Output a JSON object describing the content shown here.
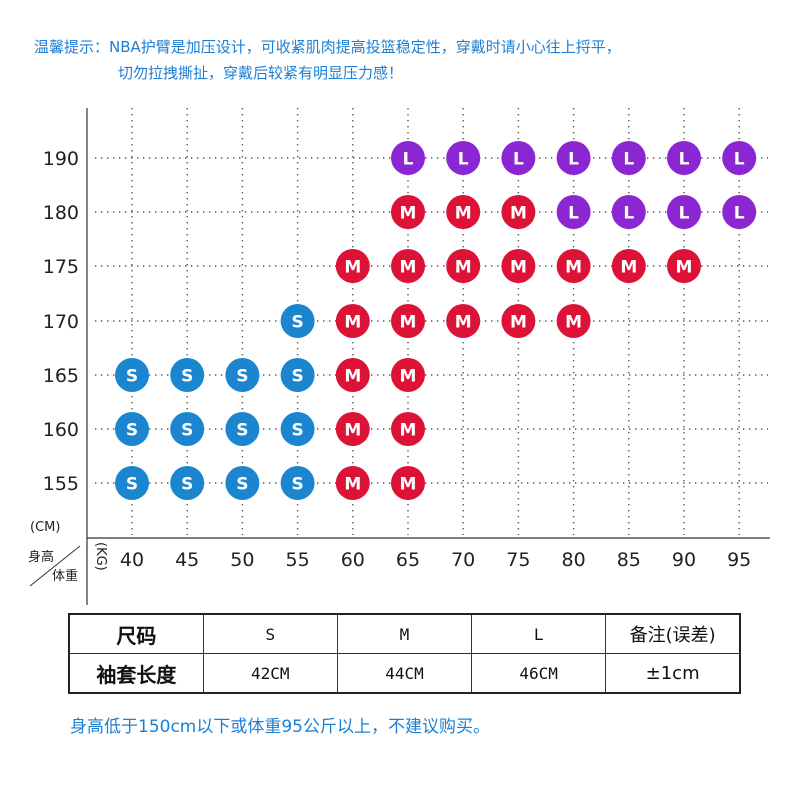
{
  "notice": {
    "line1": "温馨提示：NBA护臂是加压设计，可收紧肌肉提高投篮稳定性，穿戴时请小心往上捋平，",
    "line2": "切勿拉拽撕扯，穿戴后较紧有明显压力感！"
  },
  "chart_data": {
    "type": "scatter",
    "title": "",
    "xlabel": "(KG)",
    "ylabel": "(CM)",
    "corner_label_top": "身高",
    "corner_label_bottom": "体重",
    "x_ticks": [
      40,
      45,
      50,
      55,
      60,
      65,
      70,
      75,
      80,
      85,
      90,
      95
    ],
    "y_ticks": [
      155,
      160,
      165,
      170,
      175,
      180,
      190
    ],
    "grid": true,
    "colors": {
      "S": "#1b86cf",
      "M": "#dc1337",
      "L": "#8b26d3"
    },
    "points": [
      {
        "weight": 65,
        "height": 190,
        "size": "L"
      },
      {
        "weight": 70,
        "height": 190,
        "size": "L"
      },
      {
        "weight": 75,
        "height": 190,
        "size": "L"
      },
      {
        "weight": 80,
        "height": 190,
        "size": "L"
      },
      {
        "weight": 85,
        "height": 190,
        "size": "L"
      },
      {
        "weight": 90,
        "height": 190,
        "size": "L"
      },
      {
        "weight": 95,
        "height": 190,
        "size": "L"
      },
      {
        "weight": 65,
        "height": 180,
        "size": "M"
      },
      {
        "weight": 70,
        "height": 180,
        "size": "M"
      },
      {
        "weight": 75,
        "height": 180,
        "size": "M"
      },
      {
        "weight": 80,
        "height": 180,
        "size": "L"
      },
      {
        "weight": 85,
        "height": 180,
        "size": "L"
      },
      {
        "weight": 90,
        "height": 180,
        "size": "L"
      },
      {
        "weight": 95,
        "height": 180,
        "size": "L"
      },
      {
        "weight": 60,
        "height": 175,
        "size": "M"
      },
      {
        "weight": 65,
        "height": 175,
        "size": "M"
      },
      {
        "weight": 70,
        "height": 175,
        "size": "M"
      },
      {
        "weight": 75,
        "height": 175,
        "size": "M"
      },
      {
        "weight": 80,
        "height": 175,
        "size": "M"
      },
      {
        "weight": 85,
        "height": 175,
        "size": "M"
      },
      {
        "weight": 90,
        "height": 175,
        "size": "M"
      },
      {
        "weight": 55,
        "height": 170,
        "size": "S"
      },
      {
        "weight": 60,
        "height": 170,
        "size": "M"
      },
      {
        "weight": 65,
        "height": 170,
        "size": "M"
      },
      {
        "weight": 70,
        "height": 170,
        "size": "M"
      },
      {
        "weight": 75,
        "height": 170,
        "size": "M"
      },
      {
        "weight": 80,
        "height": 170,
        "size": "M"
      },
      {
        "weight": 40,
        "height": 165,
        "size": "S"
      },
      {
        "weight": 45,
        "height": 165,
        "size": "S"
      },
      {
        "weight": 50,
        "height": 165,
        "size": "S"
      },
      {
        "weight": 55,
        "height": 165,
        "size": "S"
      },
      {
        "weight": 60,
        "height": 165,
        "size": "M"
      },
      {
        "weight": 65,
        "height": 165,
        "size": "M"
      },
      {
        "weight": 40,
        "height": 160,
        "size": "S"
      },
      {
        "weight": 45,
        "height": 160,
        "size": "S"
      },
      {
        "weight": 50,
        "height": 160,
        "size": "S"
      },
      {
        "weight": 55,
        "height": 160,
        "size": "S"
      },
      {
        "weight": 60,
        "height": 160,
        "size": "M"
      },
      {
        "weight": 65,
        "height": 160,
        "size": "M"
      },
      {
        "weight": 40,
        "height": 155,
        "size": "S"
      },
      {
        "weight": 45,
        "height": 155,
        "size": "S"
      },
      {
        "weight": 50,
        "height": 155,
        "size": "S"
      },
      {
        "weight": 55,
        "height": 155,
        "size": "S"
      },
      {
        "weight": 60,
        "height": 155,
        "size": "M"
      },
      {
        "weight": 65,
        "height": 155,
        "size": "M"
      }
    ]
  },
  "size_table": {
    "header": [
      "尺码",
      "S",
      "M",
      "L",
      "备注(误差)"
    ],
    "row": [
      "袖套长度",
      "42CM",
      "44CM",
      "46CM",
      "±1cm"
    ]
  },
  "footer": "身高低于150cm以下或体重95公斤以上，不建议购买。"
}
